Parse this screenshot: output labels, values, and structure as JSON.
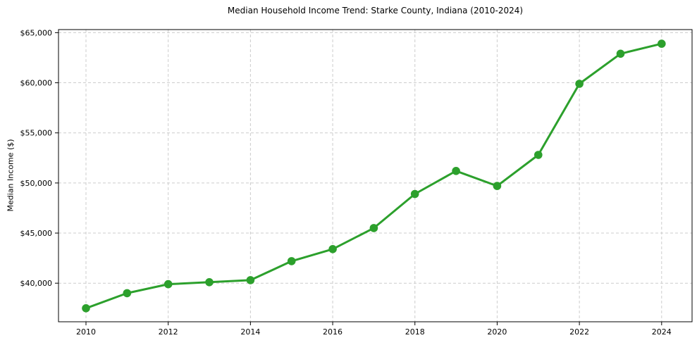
{
  "chart_data": {
    "type": "line",
    "title": "Median Household Income Trend: Starke County, Indiana (2010-2024)",
    "xlabel": "",
    "ylabel": "Median Income ($)",
    "series": [
      {
        "name": "Median Household Income",
        "x": [
          2010,
          2011,
          2012,
          2013,
          2014,
          2015,
          2016,
          2017,
          2018,
          2019,
          2020,
          2021,
          2022,
          2023,
          2024
        ],
        "values": [
          37500,
          39000,
          39900,
          40100,
          40300,
          42200,
          43400,
          45500,
          48900,
          51200,
          49700,
          52800,
          59900,
          62900,
          63900
        ]
      }
    ],
    "xticks": {
      "values": [
        2010,
        2012,
        2014,
        2016,
        2018,
        2020,
        2022,
        2024
      ],
      "labels": [
        "2010",
        "2012",
        "2014",
        "2016",
        "2018",
        "2020",
        "2022",
        "2024"
      ]
    },
    "yticks": {
      "values": [
        40000,
        45000,
        50000,
        55000,
        60000,
        65000
      ],
      "labels": [
        "$40,000",
        "$45,000",
        "$50,000",
        "$55,000",
        "$60,000",
        "$65,000"
      ]
    },
    "ylim": [
      36100,
      65330
    ],
    "xlim": [
      2009.33,
      2024.74
    ],
    "grid": {
      "visible": true,
      "style": "dashed",
      "color": "#cccccc"
    },
    "legend_position": "none",
    "line_color": "#2ca02c",
    "marker": "circle",
    "background_color": "#ffffff",
    "spine_color": "#000000"
  }
}
